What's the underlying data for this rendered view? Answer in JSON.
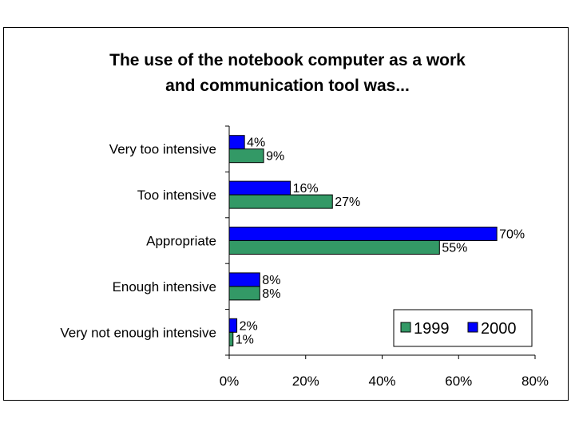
{
  "chart_data": {
    "type": "bar",
    "orientation": "horizontal",
    "title_lines": [
      "The use of the notebook computer as a work",
      "and communication tool was..."
    ],
    "categories": [
      "Very too intensive",
      "Too intensive",
      "Appropriate",
      "Enough intensive",
      "Very not enough intensive"
    ],
    "series": [
      {
        "name": "2000",
        "color": "#0000ff",
        "values": [
          4,
          16,
          70,
          8,
          2
        ],
        "labels": [
          "4%",
          "16%",
          "70%",
          "8%",
          "2%"
        ]
      },
      {
        "name": "1999",
        "color": "#339966",
        "values": [
          9,
          27,
          55,
          8,
          1
        ],
        "labels": [
          "9%",
          "27%",
          "55%",
          "8%",
          "1%"
        ]
      }
    ],
    "legend_order": [
      "1999",
      "2000"
    ],
    "xlim": [
      0,
      80
    ],
    "xticks": [
      0,
      20,
      40,
      60,
      80
    ],
    "xtick_labels": [
      "0%",
      "20%",
      "40%",
      "60%",
      "80%"
    ],
    "grid": false,
    "legend_position": "bottom-right"
  }
}
